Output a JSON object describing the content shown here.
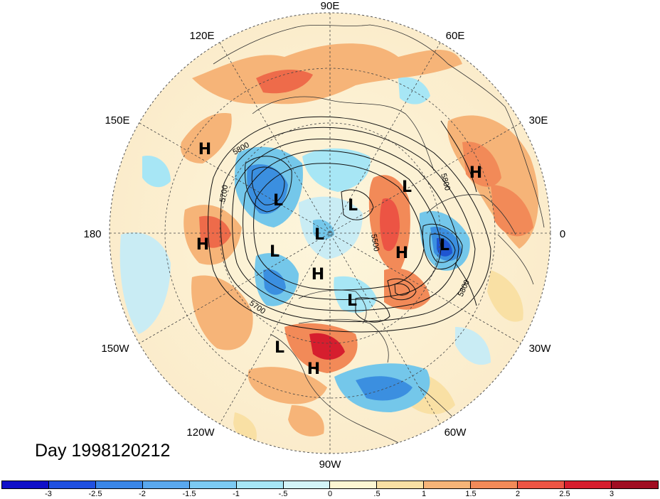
{
  "map": {
    "projection": "north-polar-stereographic",
    "longitude_labels": {
      "90E": "90E",
      "60E": "60E",
      "30E": "30E",
      "0": "0",
      "30W": "30W",
      "60W": "60W",
      "90W": "90W",
      "120W": "120W",
      "150W": "150W",
      "180": "180",
      "150E": "150E",
      "120E": "120E"
    },
    "pressure_centers": [
      {
        "name": "high-center-siberia-east",
        "mark": "H"
      },
      {
        "name": "high-center-dateline",
        "mark": "H"
      },
      {
        "name": "low-center-north-pacific",
        "mark": "L"
      },
      {
        "name": "low-center-arctic-siberia",
        "mark": "L"
      },
      {
        "name": "low-center-barents",
        "mark": "L"
      },
      {
        "name": "low-center-north-pole",
        "mark": "L"
      },
      {
        "name": "low-center-bering",
        "mark": "L"
      },
      {
        "name": "high-center-arctic-canada",
        "mark": "H"
      },
      {
        "name": "low-center-hudson",
        "mark": "L"
      },
      {
        "name": "high-center-scandinavia",
        "mark": "H"
      },
      {
        "name": "low-center-europe",
        "mark": "L"
      },
      {
        "name": "high-center-north-africa",
        "mark": "H"
      },
      {
        "name": "low-center-pacific-northwest",
        "mark": "L"
      },
      {
        "name": "high-center-mexico",
        "mark": "H"
      }
    ],
    "contour_labels": [
      "5800",
      "5700",
      "5700",
      "5500",
      "5800",
      "5800"
    ],
    "colors": {
      "ocean_neutral": "#fdf6dc",
      "warm_light": "#f7d49a",
      "warm_mid": "#f4a067",
      "warm_strong": "#ee6b4a",
      "cool_light": "#c9ecf4",
      "cool_mid": "#74c7ea",
      "cool_strong": "#3b8fe0",
      "cool_deep": "#1f55d1"
    }
  },
  "title": {
    "day_label": "Day 1998120212"
  },
  "colorbar": {
    "colors": [
      "#1010c8",
      "#2050e0",
      "#3a86e8",
      "#5aa8ee",
      "#7ccaf2",
      "#a7e6f5",
      "#d3f4f8",
      "#fcf6d2",
      "#f9e0a4",
      "#f6b478",
      "#f28a58",
      "#ec5444",
      "#d61e2e",
      "#a00e22"
    ],
    "tick_labels": [
      "-3",
      "-2.5",
      "-2",
      "-1.5",
      "-1",
      "-.5",
      "0",
      ".5",
      "1",
      "1.5",
      "2",
      "2.5",
      "3"
    ]
  }
}
